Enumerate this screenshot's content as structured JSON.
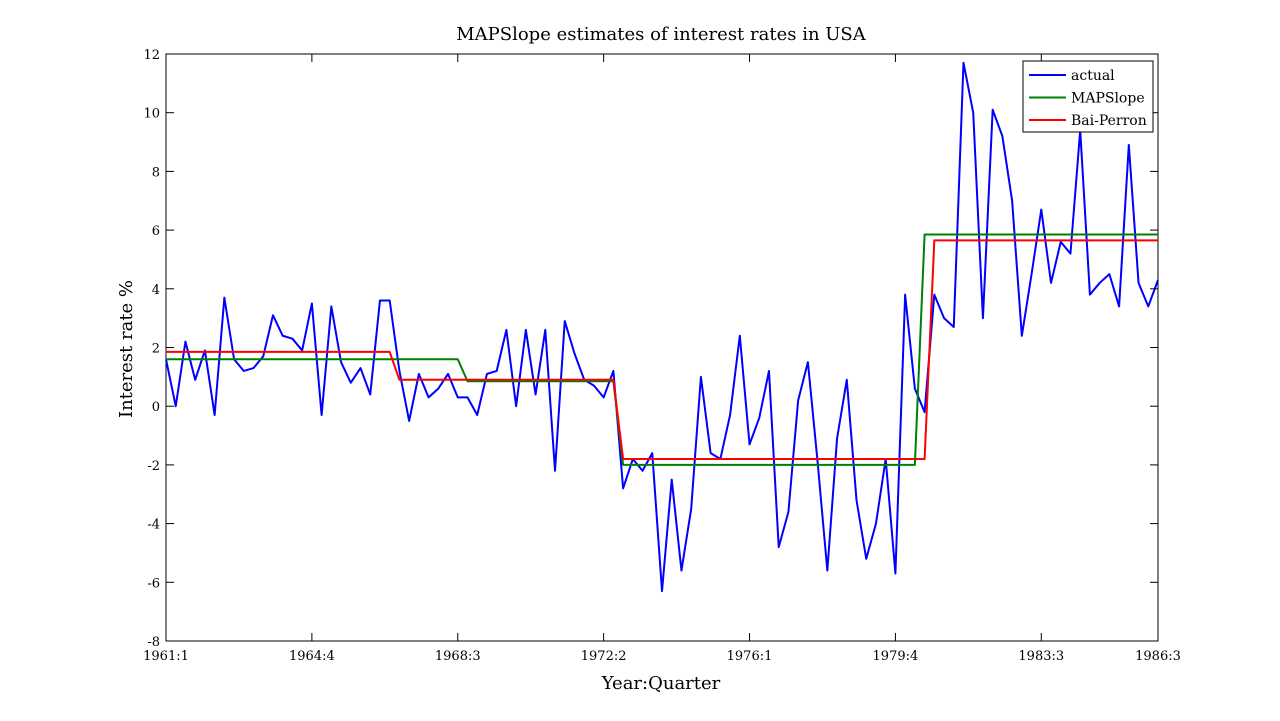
{
  "chart_data": {
    "type": "line",
    "title": "MAPSlope estimates of interest rates in USA",
    "xlabel": "Year:Quarter",
    "ylabel": "Interest rate %",
    "xlim": [
      0,
      102
    ],
    "ylim": [
      -8,
      12
    ],
    "grid": false,
    "legend_position": "top-right",
    "x_ticks": [
      {
        "pos": 0,
        "label": "1961:1"
      },
      {
        "pos": 15,
        "label": "1964:4"
      },
      {
        "pos": 30,
        "label": "1968:3"
      },
      {
        "pos": 45,
        "label": "1972:2"
      },
      {
        "pos": 60,
        "label": "1976:1"
      },
      {
        "pos": 75,
        "label": "1979:4"
      },
      {
        "pos": 90,
        "label": "1983:3"
      },
      {
        "pos": 102,
        "label": "1986:3"
      }
    ],
    "y_ticks": [
      -8,
      -6,
      -4,
      -2,
      0,
      2,
      4,
      6,
      8,
      10,
      12
    ],
    "series": [
      {
        "name": "actual",
        "color": "#0000ff",
        "values": [
          1.6,
          0.0,
          2.2,
          0.9,
          1.9,
          -0.3,
          3.7,
          1.6,
          1.2,
          1.3,
          1.7,
          3.1,
          2.4,
          2.3,
          1.9,
          3.5,
          -0.3,
          3.4,
          1.5,
          0.8,
          1.3,
          0.4,
          3.6,
          3.6,
          1.2,
          -0.5,
          1.1,
          0.3,
          0.6,
          1.1,
          0.3,
          0.3,
          -0.3,
          1.1,
          1.2,
          2.6,
          0.0,
          2.6,
          0.4,
          2.6,
          -2.2,
          2.9,
          1.8,
          0.9,
          0.7,
          0.3,
          1.2,
          -2.8,
          -1.8,
          -2.2,
          -1.6,
          -6.3,
          -2.5,
          -5.6,
          -3.5,
          1.0,
          -1.6,
          -1.8,
          -0.3,
          2.4,
          -1.3,
          -0.4,
          1.2,
          -4.8,
          -3.6,
          0.2,
          1.5,
          -1.9,
          -5.6,
          -1.1,
          0.9,
          -3.2,
          -5.2,
          -4.0,
          -1.8,
          -5.7,
          3.8,
          0.6,
          -0.2,
          3.8,
          3.0,
          2.7,
          11.7,
          10.0,
          3.0,
          10.1,
          9.2,
          7.0,
          2.4,
          4.5,
          6.7,
          4.2,
          5.6,
          5.2,
          9.4,
          3.8,
          4.2,
          4.5,
          3.4,
          8.9,
          4.2,
          3.4,
          4.3
        ]
      },
      {
        "name": "MAPSlope",
        "color": "#008000",
        "values": [
          1.6,
          1.6,
          1.6,
          1.6,
          1.6,
          1.6,
          1.6,
          1.6,
          1.6,
          1.6,
          1.6,
          1.6,
          1.6,
          1.6,
          1.6,
          1.6,
          1.6,
          1.6,
          1.6,
          1.6,
          1.6,
          1.6,
          1.6,
          1.6,
          1.6,
          1.6,
          1.6,
          1.6,
          1.6,
          1.6,
          1.6,
          0.85,
          0.85,
          0.85,
          0.85,
          0.85,
          0.85,
          0.85,
          0.85,
          0.85,
          0.85,
          0.85,
          0.85,
          0.85,
          0.85,
          0.85,
          0.85,
          -2.0,
          -2.0,
          -2.0,
          -2.0,
          -2.0,
          -2.0,
          -2.0,
          -2.0,
          -2.0,
          -2.0,
          -2.0,
          -2.0,
          -2.0,
          -2.0,
          -2.0,
          -2.0,
          -2.0,
          -2.0,
          -2.0,
          -2.0,
          -2.0,
          -2.0,
          -2.0,
          -2.0,
          -2.0,
          -2.0,
          -2.0,
          -2.0,
          -2.0,
          -2.0,
          -2.0,
          5.85,
          5.85,
          5.85,
          5.85,
          5.85,
          5.85,
          5.85,
          5.85,
          5.85,
          5.85,
          5.85,
          5.85,
          5.85,
          5.85,
          5.85,
          5.85,
          5.85,
          5.85,
          5.85,
          5.85,
          5.85,
          5.85,
          5.85,
          5.85,
          5.85
        ]
      },
      {
        "name": "Bai-Perron",
        "color": "#ff0000",
        "values": [
          1.85,
          1.85,
          1.85,
          1.85,
          1.85,
          1.85,
          1.85,
          1.85,
          1.85,
          1.85,
          1.85,
          1.85,
          1.85,
          1.85,
          1.85,
          1.85,
          1.85,
          1.85,
          1.85,
          1.85,
          1.85,
          1.85,
          1.85,
          1.85,
          0.9,
          0.9,
          0.9,
          0.9,
          0.9,
          0.9,
          0.9,
          0.9,
          0.9,
          0.9,
          0.9,
          0.9,
          0.9,
          0.9,
          0.9,
          0.9,
          0.9,
          0.9,
          0.9,
          0.9,
          0.9,
          0.9,
          0.9,
          -1.8,
          -1.8,
          -1.8,
          -1.8,
          -1.8,
          -1.8,
          -1.8,
          -1.8,
          -1.8,
          -1.8,
          -1.8,
          -1.8,
          -1.8,
          -1.8,
          -1.8,
          -1.8,
          -1.8,
          -1.8,
          -1.8,
          -1.8,
          -1.8,
          -1.8,
          -1.8,
          -1.8,
          -1.8,
          -1.8,
          -1.8,
          -1.8,
          -1.8,
          -1.8,
          -1.8,
          -1.8,
          5.65,
          5.65,
          5.65,
          5.65,
          5.65,
          5.65,
          5.65,
          5.65,
          5.65,
          5.65,
          5.65,
          5.65,
          5.65,
          5.65,
          5.65,
          5.65,
          5.65,
          5.65,
          5.65,
          5.65,
          5.65,
          5.65,
          5.65,
          5.65
        ]
      }
    ]
  }
}
